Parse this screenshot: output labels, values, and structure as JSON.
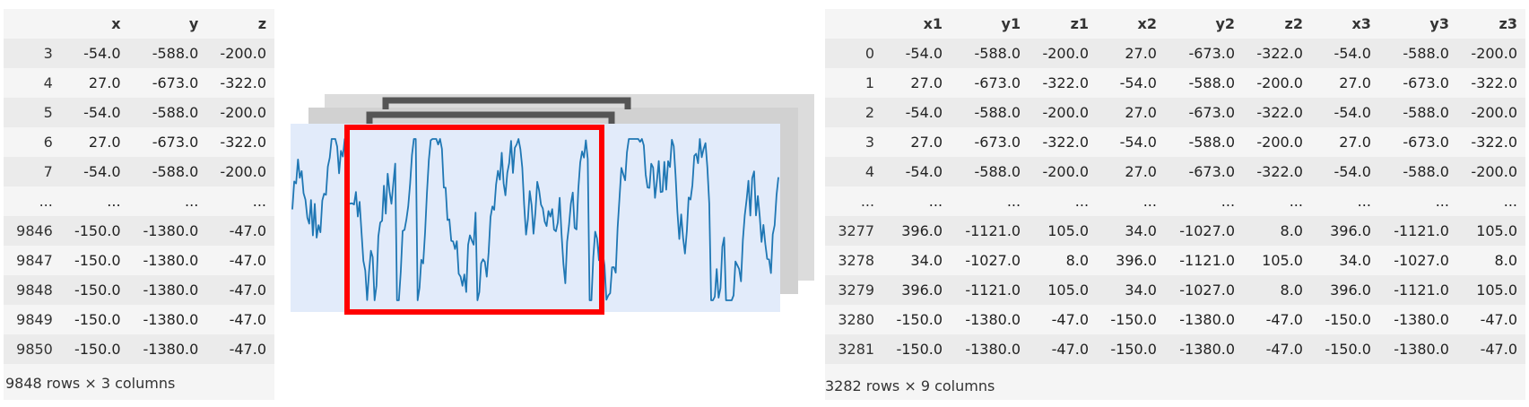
{
  "left_table": {
    "columns": [
      "",
      "x",
      "y",
      "z"
    ],
    "rows": [
      [
        "3",
        "-54.0",
        "-588.0",
        "-200.0"
      ],
      [
        "4",
        "27.0",
        "-673.0",
        "-322.0"
      ],
      [
        "5",
        "-54.0",
        "-588.0",
        "-200.0"
      ],
      [
        "6",
        "27.0",
        "-673.0",
        "-322.0"
      ],
      [
        "7",
        "-54.0",
        "-588.0",
        "-200.0"
      ],
      [
        "...",
        "...",
        "...",
        "..."
      ],
      [
        "9846",
        "-150.0",
        "-1380.0",
        "-47.0"
      ],
      [
        "9847",
        "-150.0",
        "-1380.0",
        "-47.0"
      ],
      [
        "9848",
        "-150.0",
        "-1380.0",
        "-47.0"
      ],
      [
        "9849",
        "-150.0",
        "-1380.0",
        "-47.0"
      ],
      [
        "9850",
        "-150.0",
        "-1380.0",
        "-47.0"
      ]
    ],
    "footer": "9848 rows × 3 columns"
  },
  "right_table": {
    "columns": [
      "",
      "x1",
      "y1",
      "z1",
      "x2",
      "y2",
      "z2",
      "x3",
      "y3",
      "z3"
    ],
    "rows": [
      [
        "0",
        "-54.0",
        "-588.0",
        "-200.0",
        "27.0",
        "-673.0",
        "-322.0",
        "-54.0",
        "-588.0",
        "-200.0"
      ],
      [
        "1",
        "27.0",
        "-673.0",
        "-322.0",
        "-54.0",
        "-588.0",
        "-200.0",
        "27.0",
        "-673.0",
        "-322.0"
      ],
      [
        "2",
        "-54.0",
        "-588.0",
        "-200.0",
        "27.0",
        "-673.0",
        "-322.0",
        "-54.0",
        "-588.0",
        "-200.0"
      ],
      [
        "3",
        "27.0",
        "-673.0",
        "-322.0",
        "-54.0",
        "-588.0",
        "-200.0",
        "27.0",
        "-673.0",
        "-322.0"
      ],
      [
        "4",
        "-54.0",
        "-588.0",
        "-200.0",
        "27.0",
        "-673.0",
        "-322.0",
        "-54.0",
        "-588.0",
        "-200.0"
      ],
      [
        "...",
        "...",
        "...",
        "...",
        "...",
        "...",
        "...",
        "...",
        "...",
        "..."
      ],
      [
        "3277",
        "396.0",
        "-1121.0",
        "105.0",
        "34.0",
        "-1027.0",
        "8.0",
        "396.0",
        "-1121.0",
        "105.0"
      ],
      [
        "3278",
        "34.0",
        "-1027.0",
        "8.0",
        "396.0",
        "-1121.0",
        "105.0",
        "34.0",
        "-1027.0",
        "8.0"
      ],
      [
        "3279",
        "396.0",
        "-1121.0",
        "105.0",
        "34.0",
        "-1027.0",
        "8.0",
        "396.0",
        "-1121.0",
        "105.0"
      ],
      [
        "3280",
        "-150.0",
        "-1380.0",
        "-47.0",
        "-150.0",
        "-1380.0",
        "-47.0",
        "-150.0",
        "-1380.0",
        "-47.0"
      ],
      [
        "3281",
        "-150.0",
        "-1380.0",
        "-47.0",
        "-150.0",
        "-1380.0",
        "-47.0",
        "-150.0",
        "-1380.0",
        "-47.0"
      ]
    ],
    "footer": "3282 rows × 9 columns"
  },
  "diagram": {
    "window_color": "#ff0000",
    "signal_color": "#1f77b4",
    "front_layer_color": "#e2ebfa",
    "back_layer_color": "#dcdcdc",
    "bracket_color": "#555555",
    "window_count": 3
  }
}
